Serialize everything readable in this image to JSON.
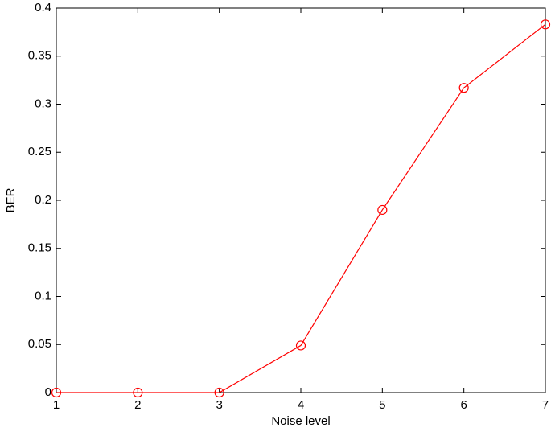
{
  "chart_data": {
    "type": "line",
    "x_label": "Noise level",
    "y_label": "BER",
    "x": [
      1,
      2,
      3,
      4,
      5,
      6,
      7
    ],
    "values": [
      0,
      0,
      0,
      0.049,
      0.19,
      0.317,
      0.383
    ],
    "color": "#ff0000",
    "marker": "circle",
    "xlim": [
      1,
      7
    ],
    "xticks": [
      1,
      2,
      3,
      4,
      5,
      6,
      7
    ],
    "ylim": [
      0,
      0.4
    ],
    "yticks": [
      0,
      0.05,
      0.1,
      0.15,
      0.2,
      0.25,
      0.3,
      0.35,
      0.4
    ],
    "grid": false
  }
}
